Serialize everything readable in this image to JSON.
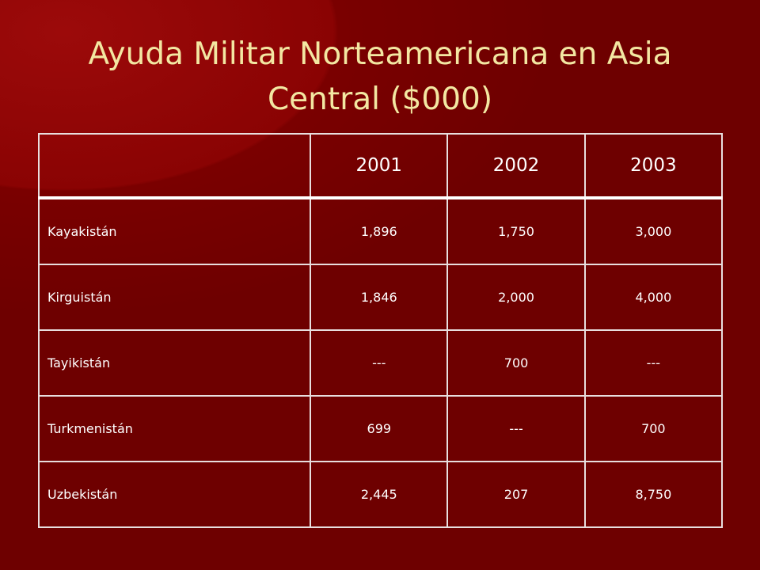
{
  "title": "Ayuda Militar Norteamericana en Asia Central ($000)",
  "table": {
    "columns": [
      "2001",
      "2002",
      "2003"
    ],
    "rows": [
      [
        "Kayakistán",
        "1,896",
        "1,750",
        "3,000"
      ],
      [
        "Kirguistán",
        "1,846",
        "2,000",
        "4,000"
      ],
      [
        "Tayikistán",
        "---",
        "700",
        "---"
      ],
      [
        "Turkmenistán",
        "699",
        "---",
        "700"
      ],
      [
        "Uzbekistán",
        "2,445",
        "207",
        "8,750"
      ]
    ]
  }
}
